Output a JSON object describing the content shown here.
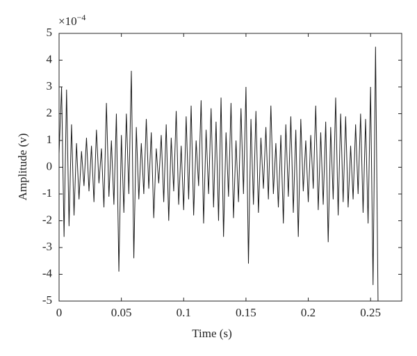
{
  "chart_data": {
    "type": "line",
    "xlabel": "Time (s)",
    "ylabel": "Amplitude (v)",
    "y_multiplier": {
      "base": "×10",
      "exponent": "−4"
    },
    "xlim": [
      0,
      0.275
    ],
    "ylim": [
      -5,
      5
    ],
    "xticks": [
      0,
      0.05,
      0.1,
      0.15,
      0.2,
      0.25
    ],
    "yticks": [
      -5,
      -4,
      -3,
      -2,
      -1,
      0,
      1,
      2,
      3,
      4,
      5
    ],
    "series": [
      {
        "color": "#1a1a1a",
        "x": [
          0,
          0.002,
          0.004,
          0.006,
          0.008,
          0.01,
          0.012,
          0.014,
          0.016,
          0.018,
          0.02,
          0.022,
          0.024,
          0.026,
          0.028,
          0.03,
          0.032,
          0.034,
          0.036,
          0.038,
          0.04,
          0.042,
          0.044,
          0.046,
          0.048,
          0.05,
          0.052,
          0.054,
          0.056,
          0.058,
          0.06,
          0.062,
          0.064,
          0.066,
          0.068,
          0.07,
          0.072,
          0.074,
          0.076,
          0.078,
          0.08,
          0.082,
          0.084,
          0.086,
          0.088,
          0.09,
          0.092,
          0.094,
          0.096,
          0.098,
          0.1,
          0.102,
          0.104,
          0.106,
          0.108,
          0.11,
          0.112,
          0.114,
          0.116,
          0.118,
          0.12,
          0.122,
          0.124,
          0.126,
          0.128,
          0.13,
          0.132,
          0.134,
          0.136,
          0.138,
          0.14,
          0.142,
          0.144,
          0.146,
          0.148,
          0.15,
          0.152,
          0.154,
          0.156,
          0.158,
          0.16,
          0.162,
          0.164,
          0.166,
          0.168,
          0.17,
          0.172,
          0.174,
          0.176,
          0.178,
          0.18,
          0.182,
          0.184,
          0.186,
          0.188,
          0.19,
          0.192,
          0.194,
          0.196,
          0.198,
          0.2,
          0.202,
          0.204,
          0.206,
          0.208,
          0.21,
          0.212,
          0.214,
          0.216,
          0.218,
          0.22,
          0.222,
          0.224,
          0.226,
          0.228,
          0.23,
          0.232,
          0.234,
          0.236,
          0.238,
          0.24,
          0.242,
          0.244,
          0.246,
          0.248,
          0.25,
          0.252,
          0.254,
          0.256
        ],
        "values": [
          0.5,
          3.0,
          -2.6,
          2.9,
          -2.2,
          1.6,
          -1.8,
          0.9,
          -1.2,
          0.6,
          -0.7,
          1.1,
          -0.9,
          0.8,
          -1.3,
          1.4,
          -0.6,
          0.7,
          -1.5,
          2.4,
          -1.1,
          1.0,
          -1.4,
          2.0,
          -3.9,
          1.2,
          -1.7,
          2.0,
          -1.0,
          3.6,
          -3.4,
          1.5,
          -1.2,
          0.9,
          -1.0,
          1.8,
          -0.8,
          1.3,
          -1.9,
          0.7,
          -0.6,
          1.2,
          -1.3,
          1.6,
          -2.0,
          1.1,
          -0.9,
          2.1,
          -1.4,
          0.8,
          -1.6,
          1.9,
          -1.2,
          2.3,
          -1.8,
          1.0,
          -0.7,
          2.5,
          -2.1,
          1.4,
          -1.0,
          2.2,
          -1.5,
          1.7,
          -2.0,
          2.6,
          -2.6,
          1.3,
          -1.1,
          2.4,
          -1.9,
          1.0,
          -1.3,
          2.2,
          -1.0,
          3.0,
          -3.6,
          1.8,
          -1.4,
          2.1,
          -1.7,
          1.1,
          -0.8,
          1.5,
          -1.2,
          2.3,
          -1.0,
          0.9,
          -1.5,
          1.2,
          -2.1,
          1.6,
          -1.1,
          1.9,
          -1.7,
          1.4,
          -2.6,
          1.8,
          -0.9,
          1.0,
          -1.3,
          1.2,
          -0.8,
          2.3,
          -1.6,
          1.3,
          -1.4,
          1.7,
          -2.8,
          1.5,
          -1.2,
          2.6,
          -1.8,
          2.0,
          -1.3,
          1.9,
          -1.5,
          0.8,
          -1.2,
          1.6,
          -1.0,
          2.0,
          -1.7,
          1.8,
          -2.1,
          3.0,
          -4.4,
          4.5,
          -5.0
        ]
      }
    ]
  }
}
